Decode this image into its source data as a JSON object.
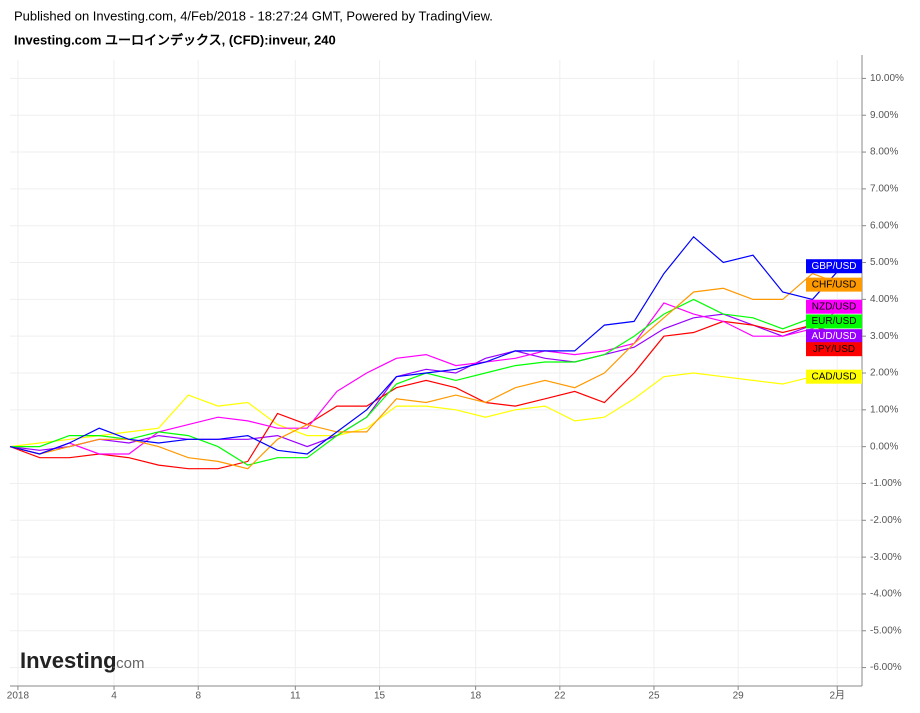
{
  "header": {
    "published": "Published on Investing.com, 4/Feb/2018 - 18:27:24 GMT, Powered by TradingView.",
    "subtitle": "Investing.com ユーロインデックス, (CFD):inveur, 240"
  },
  "logo": {
    "brand": "Investing",
    "suffix": ".com"
  },
  "chart_data": {
    "type": "line",
    "x": [
      0,
      3,
      6,
      9,
      12,
      15,
      18,
      21,
      24,
      27,
      30,
      33,
      36,
      39,
      42,
      45,
      48,
      51,
      54,
      57,
      60,
      63,
      66,
      69,
      72,
      75,
      78,
      81,
      84
    ],
    "xlim": [
      0,
      86
    ],
    "xticks": [
      {
        "value": 0.8,
        "label": "2018"
      },
      {
        "value": 10.5,
        "label": "4"
      },
      {
        "value": 19,
        "label": "8"
      },
      {
        "value": 28.8,
        "label": "11"
      },
      {
        "value": 37.3,
        "label": "15"
      },
      {
        "value": 47,
        "label": "18"
      },
      {
        "value": 55.5,
        "label": "22"
      },
      {
        "value": 65,
        "label": "25"
      },
      {
        "value": 73.5,
        "label": "29"
      },
      {
        "value": 83.5,
        "label": "2月"
      }
    ],
    "ylim": [
      -6.5,
      10.5
    ],
    "yticks": [
      {
        "value": -6,
        "label": "-6.00%"
      },
      {
        "value": -5,
        "label": "-5.00%"
      },
      {
        "value": -4,
        "label": "-4.00%"
      },
      {
        "value": -3,
        "label": "-3.00%"
      },
      {
        "value": -2,
        "label": "-2.00%"
      },
      {
        "value": -1,
        "label": "-1.00%"
      },
      {
        "value": 0,
        "label": "0.00%"
      },
      {
        "value": 1,
        "label": "1.00%"
      },
      {
        "value": 2,
        "label": "2.00%"
      },
      {
        "value": 3,
        "label": "3.00%"
      },
      {
        "value": 4,
        "label": "4.00%"
      },
      {
        "value": 5,
        "label": "5.00%"
      },
      {
        "value": 6,
        "label": "6.00%"
      },
      {
        "value": 7,
        "label": "7.00%"
      },
      {
        "value": 8,
        "label": "8.00%"
      },
      {
        "value": 9,
        "label": "9.00%"
      },
      {
        "value": 10,
        "label": "10.00%"
      }
    ],
    "grid": true,
    "series": [
      {
        "name": "CAD/USD",
        "color": "#ffff00",
        "values": [
          0,
          0.1,
          0.2,
          0.3,
          0.4,
          0.5,
          1.4,
          1.1,
          1.2,
          0.6,
          0.3,
          0.3,
          0.5,
          1.1,
          1.1,
          1.0,
          0.8,
          1.0,
          1.1,
          0.7,
          0.8,
          1.3,
          1.9,
          2.0,
          1.9,
          1.8,
          1.7,
          1.9,
          1.9
        ]
      },
      {
        "name": "AUD/USD",
        "color": "#9900ff",
        "values": [
          0,
          -0.1,
          0.0,
          0.2,
          0.1,
          0.3,
          0.2,
          0.2,
          0.2,
          0.3,
          0.0,
          0.3,
          0.8,
          1.9,
          2.1,
          2.0,
          2.4,
          2.6,
          2.4,
          2.3,
          2.5,
          2.7,
          3.2,
          3.5,
          3.6,
          3.3,
          3.0,
          3.3,
          3.0
        ]
      },
      {
        "name": "JPY/USD",
        "color": "#ff0000",
        "values": [
          0,
          -0.3,
          -0.3,
          -0.2,
          -0.3,
          -0.5,
          -0.6,
          -0.6,
          -0.4,
          0.9,
          0.6,
          1.1,
          1.1,
          1.6,
          1.8,
          1.6,
          1.2,
          1.1,
          1.3,
          1.5,
          1.2,
          2.0,
          3.0,
          3.1,
          3.4,
          3.3,
          3.1,
          3.3,
          2.9
        ]
      },
      {
        "name": "NZD/USD",
        "color": "#ff00ff",
        "values": [
          0,
          -0.2,
          0.1,
          -0.2,
          -0.2,
          0.4,
          0.6,
          0.8,
          0.7,
          0.5,
          0.5,
          1.5,
          2.0,
          2.4,
          2.5,
          2.2,
          2.3,
          2.4,
          2.6,
          2.5,
          2.6,
          2.8,
          3.9,
          3.6,
          3.4,
          3.0,
          3.0,
          3.2,
          3.8
        ]
      },
      {
        "name": "EUR/USD",
        "color": "#00ff00",
        "values": [
          0,
          0.0,
          0.3,
          0.3,
          0.2,
          0.4,
          0.3,
          0.0,
          -0.5,
          -0.3,
          -0.3,
          0.3,
          0.8,
          1.7,
          2.0,
          1.8,
          2.0,
          2.2,
          2.3,
          2.3,
          2.5,
          3.0,
          3.6,
          4.0,
          3.6,
          3.5,
          3.2,
          3.5,
          3.4
        ]
      },
      {
        "name": "CHF/USD",
        "color": "#ff9900",
        "values": [
          0,
          -0.2,
          0.0,
          0.2,
          0.2,
          0.0,
          -0.3,
          -0.4,
          -0.6,
          0.2,
          0.6,
          0.4,
          0.4,
          1.3,
          1.2,
          1.4,
          1.2,
          1.6,
          1.8,
          1.6,
          2.0,
          2.8,
          3.5,
          4.2,
          4.3,
          4.0,
          4.0,
          4.7,
          4.4
        ]
      },
      {
        "name": "GBP/USD",
        "color": "#0000ff",
        "values": [
          0,
          -0.2,
          0.1,
          0.5,
          0.2,
          0.1,
          0.2,
          0.2,
          0.3,
          -0.1,
          -0.2,
          0.4,
          1.0,
          1.9,
          2.0,
          2.1,
          2.3,
          2.6,
          2.6,
          2.6,
          3.3,
          3.4,
          4.7,
          5.7,
          5.0,
          5.2,
          4.2,
          4.0,
          4.9
        ]
      }
    ]
  }
}
